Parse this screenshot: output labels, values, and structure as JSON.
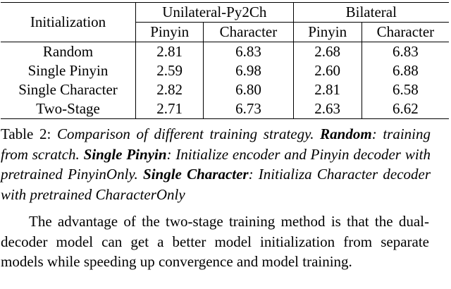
{
  "table": {
    "header": {
      "initialization": "Initialization",
      "group1": "Unilateral-Py2Ch",
      "group2": "Bilateral",
      "sub": [
        "Pinyin",
        "Character",
        "Pinyin",
        "Character"
      ]
    },
    "rows": [
      {
        "label": "Random",
        "values": [
          "2.81",
          "6.83",
          "2.68",
          "6.83"
        ]
      },
      {
        "label": "Single Pinyin",
        "values": [
          "2.59",
          "6.98",
          "2.60",
          "6.88"
        ]
      },
      {
        "label": "Single Character",
        "values": [
          "2.82",
          "6.80",
          "2.81",
          "6.58"
        ]
      },
      {
        "label": "Two-Stage",
        "values": [
          "2.71",
          "6.73",
          "2.63",
          "6.62"
        ]
      }
    ]
  },
  "caption": {
    "prefix": "Table 2: ",
    "intro": "Comparison of different training strategy. ",
    "term1": "Random",
    "desc1": ": training from scratch. ",
    "term2": "Single Pinyin",
    "desc2": ": Initialize encoder and Pinyin decoder with pretrained PinyinOnly. ",
    "term3": "Single Character",
    "desc3": ": Initializa Character decoder with pretrained CharacterOnly"
  },
  "paragraph": "The advantage of the two-stage training method is that the dual-decoder model can get a better model initialization from separate models while speeding up convergence and model training."
}
